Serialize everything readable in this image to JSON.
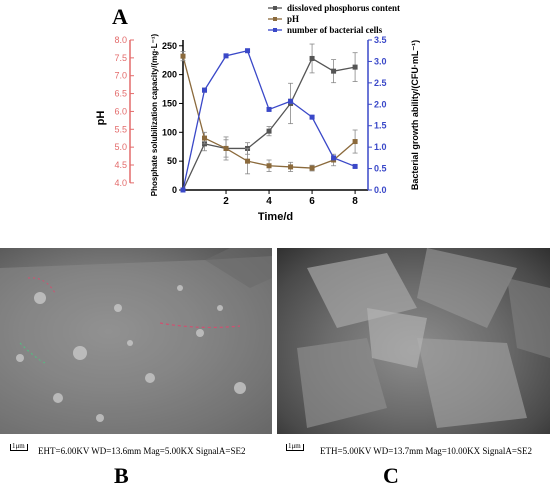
{
  "panels": {
    "a": "A",
    "b": "B",
    "c": "C"
  },
  "chart_data": {
    "type": "line",
    "x_values": [
      0,
      1,
      2,
      3,
      4,
      5,
      6,
      7,
      8
    ],
    "x_ticks": [
      "2",
      "4",
      "6",
      "8"
    ],
    "x_label": "Time/d",
    "xlim": [
      0,
      8.6
    ],
    "axes": {
      "ph": {
        "label": "pH",
        "ticks": [
          "4.0",
          "4.5",
          "5.0",
          "5.5",
          "6.0",
          "6.5",
          "7.0",
          "7.5",
          "8.0"
        ],
        "ylim": [
          3.8,
          8.0
        ],
        "color": "#e36b6b"
      },
      "phosphate": {
        "label": "Phosphate solubilization capacity/(mg·L⁻¹)",
        "ticks": [
          "0",
          "50",
          "100",
          "150",
          "200",
          "250"
        ],
        "ylim": [
          0,
          260
        ]
      },
      "bacteria": {
        "label": "Bacterial growth ability/(CFU·mL⁻¹)",
        "ticks": [
          "0.0",
          "0.5",
          "1.0",
          "1.5",
          "2.0",
          "2.5",
          "3.0",
          "3.5"
        ],
        "ylim": [
          0,
          3.5
        ],
        "color": "#3a48c8"
      }
    },
    "series": [
      {
        "name": "dissloved phosphorus content",
        "axis": "phosphate",
        "color": "#555555",
        "marker": "square",
        "values": [
          0,
          80,
          72,
          72,
          102,
          150,
          228,
          206,
          213
        ],
        "errors": [
          0,
          12,
          15,
          10,
          8,
          35,
          25,
          20,
          25
        ]
      },
      {
        "name": "pH",
        "axis": "phosphate",
        "color": "#8b6a3c",
        "marker": "square",
        "values": [
          232,
          90,
          72,
          50,
          42,
          40,
          38,
          52,
          84
        ],
        "errors": [
          8,
          10,
          20,
          22,
          10,
          8,
          5,
          10,
          20
        ]
      },
      {
        "name": "number of bacterial cells",
        "axis": "bacteria",
        "color": "#3a48c8",
        "marker": "square",
        "values": [
          0,
          2.33,
          3.13,
          3.25,
          1.88,
          2.07,
          1.7,
          0.75,
          0.55
        ],
        "errors": [
          0,
          0.05,
          0.03,
          0.03,
          0.03,
          0.05,
          0.04,
          0.04,
          0.03
        ]
      }
    ]
  },
  "sem": {
    "b": {
      "scale": "1μm",
      "info": "EHT=6.00KV    WD=13.6mm    Mag=5.00KX    SignalA=SE2"
    },
    "c": {
      "scale": "1μm",
      "info": "ETH=5.00KV   WD=13.7mm   Mag=10.00KX   SignalA=SE2"
    }
  }
}
